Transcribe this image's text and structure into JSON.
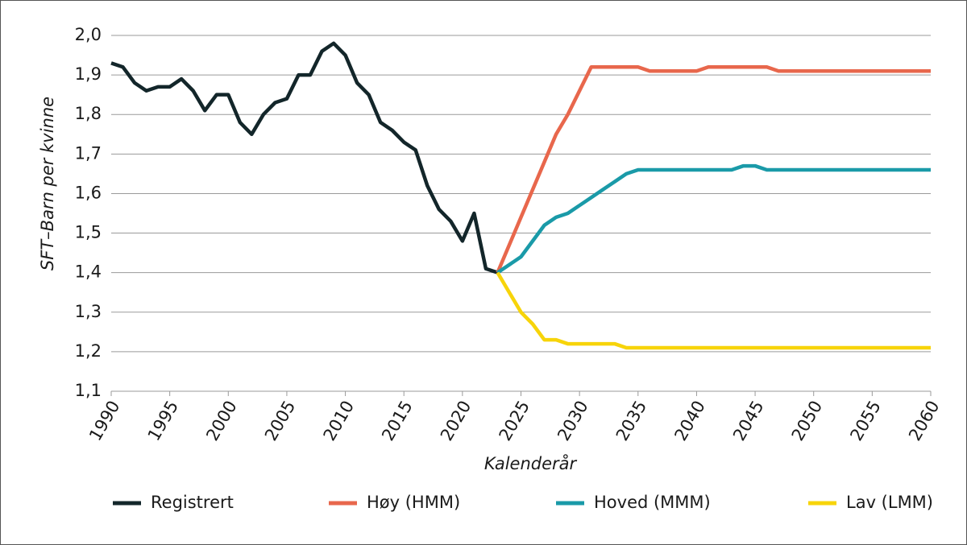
{
  "chart_data": {
    "type": "line",
    "x_label": "Kalenderår",
    "y_label": "SFT–Barn per kvinne",
    "x": [
      1990,
      1991,
      1992,
      1993,
      1994,
      1995,
      1996,
      1997,
      1998,
      1999,
      2000,
      2001,
      2002,
      2003,
      2004,
      2005,
      2006,
      2007,
      2008,
      2009,
      2010,
      2011,
      2012,
      2013,
      2014,
      2015,
      2016,
      2017,
      2018,
      2019,
      2020,
      2021,
      2022,
      2023,
      2024,
      2025,
      2026,
      2027,
      2028,
      2029,
      2030,
      2031,
      2032,
      2033,
      2034,
      2035,
      2036,
      2037,
      2038,
      2039,
      2040,
      2041,
      2042,
      2043,
      2044,
      2045,
      2046,
      2047,
      2048,
      2049,
      2050,
      2051,
      2052,
      2053,
      2054,
      2055,
      2056,
      2057,
      2058,
      2059,
      2060
    ],
    "series": [
      {
        "name": "Registrert",
        "color": "#13262a",
        "values": [
          1.93,
          1.92,
          1.88,
          1.86,
          1.87,
          1.87,
          1.89,
          1.86,
          1.81,
          1.85,
          1.85,
          1.78,
          1.75,
          1.8,
          1.83,
          1.84,
          1.9,
          1.9,
          1.96,
          1.98,
          1.95,
          1.88,
          1.85,
          1.78,
          1.76,
          1.73,
          1.71,
          1.62,
          1.56,
          1.53,
          1.48,
          1.55,
          1.41,
          1.4,
          null,
          null,
          null,
          null,
          null,
          null,
          null,
          null,
          null,
          null,
          null,
          null,
          null,
          null,
          null,
          null,
          null,
          null,
          null,
          null,
          null,
          null,
          null,
          null,
          null,
          null,
          null,
          null,
          null,
          null,
          null,
          null,
          null,
          null,
          null,
          null,
          null
        ]
      },
      {
        "name": "Høy (HMM)",
        "color": "#e8674c",
        "values": [
          null,
          null,
          null,
          null,
          null,
          null,
          null,
          null,
          null,
          null,
          null,
          null,
          null,
          null,
          null,
          null,
          null,
          null,
          null,
          null,
          null,
          null,
          null,
          null,
          null,
          null,
          null,
          null,
          null,
          null,
          null,
          null,
          null,
          1.4,
          1.47,
          1.54,
          1.61,
          1.68,
          1.75,
          1.8,
          1.86,
          1.92,
          1.92,
          1.92,
          1.92,
          1.92,
          1.91,
          1.91,
          1.91,
          1.91,
          1.91,
          1.92,
          1.92,
          1.92,
          1.92,
          1.92,
          1.92,
          1.91,
          1.91,
          1.91,
          1.91,
          1.91,
          1.91,
          1.91,
          1.91,
          1.91,
          1.91,
          1.91,
          1.91,
          1.91,
          1.91
        ]
      },
      {
        "name": "Hoved (MMM)",
        "color": "#1a9aa8",
        "values": [
          null,
          null,
          null,
          null,
          null,
          null,
          null,
          null,
          null,
          null,
          null,
          null,
          null,
          null,
          null,
          null,
          null,
          null,
          null,
          null,
          null,
          null,
          null,
          null,
          null,
          null,
          null,
          null,
          null,
          null,
          null,
          null,
          null,
          1.4,
          1.42,
          1.44,
          1.48,
          1.52,
          1.54,
          1.55,
          1.57,
          1.59,
          1.61,
          1.63,
          1.65,
          1.66,
          1.66,
          1.66,
          1.66,
          1.66,
          1.66,
          1.66,
          1.66,
          1.66,
          1.67,
          1.67,
          1.66,
          1.66,
          1.66,
          1.66,
          1.66,
          1.66,
          1.66,
          1.66,
          1.66,
          1.66,
          1.66,
          1.66,
          1.66,
          1.66,
          1.66
        ]
      },
      {
        "name": "Lav (LMM)",
        "color": "#f7d40a",
        "values": [
          null,
          null,
          null,
          null,
          null,
          null,
          null,
          null,
          null,
          null,
          null,
          null,
          null,
          null,
          null,
          null,
          null,
          null,
          null,
          null,
          null,
          null,
          null,
          null,
          null,
          null,
          null,
          null,
          null,
          null,
          null,
          null,
          null,
          1.4,
          1.35,
          1.3,
          1.27,
          1.23,
          1.23,
          1.22,
          1.22,
          1.22,
          1.22,
          1.22,
          1.21,
          1.21,
          1.21,
          1.21,
          1.21,
          1.21,
          1.21,
          1.21,
          1.21,
          1.21,
          1.21,
          1.21,
          1.21,
          1.21,
          1.21,
          1.21,
          1.21,
          1.21,
          1.21,
          1.21,
          1.21,
          1.21,
          1.21,
          1.21,
          1.21,
          1.21,
          1.21
        ]
      }
    ],
    "xlim": [
      1990,
      2060
    ],
    "xticks": [
      1990,
      1995,
      2000,
      2005,
      2010,
      2015,
      2020,
      2025,
      2030,
      2035,
      2040,
      2045,
      2050,
      2055,
      2060
    ],
    "ylim": [
      1.1,
      2.0
    ],
    "yticks": [
      {
        "value": 1.1,
        "label": "1,1"
      },
      {
        "value": 1.2,
        "label": "1,2"
      },
      {
        "value": 1.3,
        "label": "1,3"
      },
      {
        "value": 1.4,
        "label": "1,4"
      },
      {
        "value": 1.5,
        "label": "1,5"
      },
      {
        "value": 1.6,
        "label": "1,6"
      },
      {
        "value": 1.7,
        "label": "1,7"
      },
      {
        "value": 1.8,
        "label": "1,8"
      },
      {
        "value": 1.9,
        "label": "1,9"
      },
      {
        "value": 2.0,
        "label": "2,0"
      }
    ],
    "grid": true,
    "legend": "bottom"
  }
}
